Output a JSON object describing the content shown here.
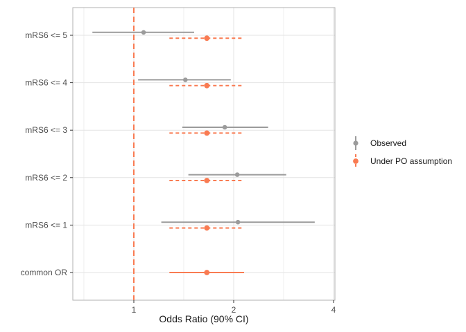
{
  "chart_data": {
    "type": "forest",
    "title": "",
    "xlabel": "Odds Ratio (90% CI)",
    "x_scale": "log2",
    "x_ticks": [
      1,
      2,
      4
    ],
    "x_tick_labels": [
      "1",
      "2",
      "4"
    ],
    "x_minor_ticks": [
      0.707,
      1.414,
      2.828
    ],
    "x_range": [
      0.65,
      4.07
    ],
    "ref_line_x": 1,
    "categories": [
      "mRS6 <= 5",
      "mRS6 <= 4",
      "mRS6 <= 3",
      "mRS6 <= 2",
      "mRS6 <= 1",
      "common OR"
    ],
    "rows": [
      {
        "label": "mRS6 <= 5",
        "observed": {
          "or": 1.07,
          "lo": 0.75,
          "hi": 1.52
        },
        "po": {
          "or": 1.66,
          "lo": 1.28,
          "hi": 2.15
        },
        "po_style": "dashed"
      },
      {
        "label": "mRS6 <= 4",
        "observed": {
          "or": 1.43,
          "lo": 1.03,
          "hi": 1.96
        },
        "po": {
          "or": 1.66,
          "lo": 1.28,
          "hi": 2.15
        },
        "po_style": "dashed"
      },
      {
        "label": "mRS6 <= 3",
        "observed": {
          "or": 1.88,
          "lo": 1.4,
          "hi": 2.54
        },
        "po": {
          "or": 1.66,
          "lo": 1.28,
          "hi": 2.15
        },
        "po_style": "dashed"
      },
      {
        "label": "mRS6 <= 2",
        "observed": {
          "or": 2.05,
          "lo": 1.46,
          "hi": 2.88
        },
        "po": {
          "or": 1.66,
          "lo": 1.28,
          "hi": 2.15
        },
        "po_style": "dashed"
      },
      {
        "label": "mRS6 <= 1",
        "observed": {
          "or": 2.06,
          "lo": 1.21,
          "hi": 3.51
        },
        "po": {
          "or": 1.66,
          "lo": 1.28,
          "hi": 2.15
        },
        "po_style": "dashed"
      },
      {
        "label": "common OR",
        "observed": null,
        "po": {
          "or": 1.66,
          "lo": 1.28,
          "hi": 2.15
        },
        "po_style": "solid"
      }
    ],
    "legend": [
      {
        "label": "Observed",
        "style": "solid"
      },
      {
        "label": "Under PO assumption",
        "style": "dashed"
      }
    ],
    "colors": {
      "observed": "#9b9b9b",
      "po": "#f97b52",
      "grid_major": "#e3e3e3",
      "grid_minor": "#efefef",
      "panel_border": "#b0b0b0",
      "tick_mark": "#333333",
      "tick_label": "#4d4d4d",
      "axis_title": "#1a1a1a"
    },
    "legend_position": "right",
    "grid": true
  }
}
